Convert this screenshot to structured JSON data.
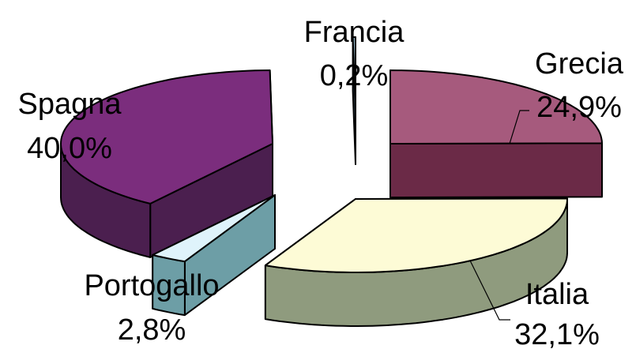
{
  "chart_data": {
    "type": "pie",
    "style": "3d-exploded",
    "title": "",
    "legend": "none",
    "slices": [
      {
        "label": "Grecia",
        "percent": "24,9%",
        "value": 24.9,
        "top_color": "#a65a7d",
        "side_color": "#6b2a47"
      },
      {
        "label": "Italia",
        "percent": "32,1%",
        "value": 32.1,
        "top_color": "#fdfbd6",
        "side_color": "#8f9b7e"
      },
      {
        "label": "Portogallo",
        "percent": "2,8%",
        "value": 2.8,
        "top_color": "#dff3fb",
        "side_color": "#6d9ea6"
      },
      {
        "label": "Spagna",
        "percent": "40,0%",
        "value": 40.0,
        "top_color": "#7b2d7d",
        "side_color": "#4b1f4f"
      },
      {
        "label": "Francia",
        "percent": "0,2%",
        "value": 0.2,
        "top_color": "#8fb0c0",
        "side_color": "#2e4a5a"
      }
    ]
  }
}
